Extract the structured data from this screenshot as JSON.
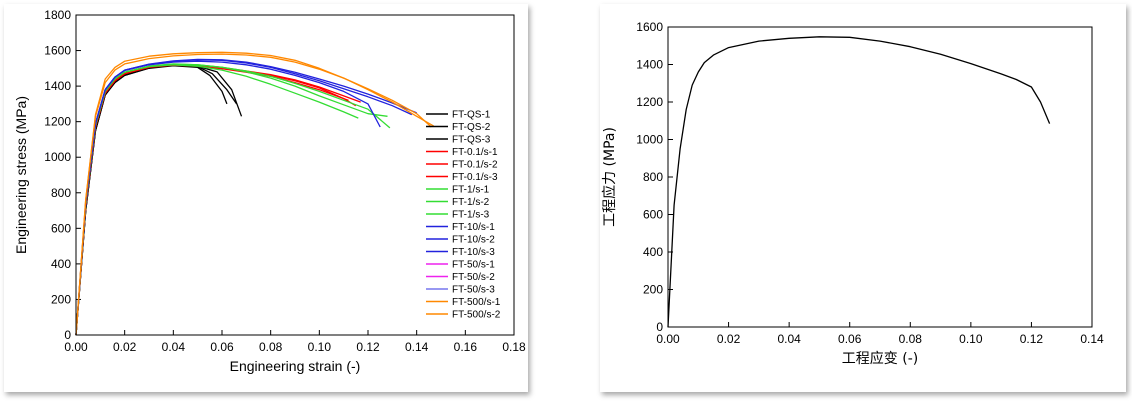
{
  "chart_data": [
    {
      "type": "line",
      "title": "",
      "xlabel": "Engineering strain (-)",
      "ylabel": "Engineering stress (MPa)",
      "xlim": [
        0,
        0.18
      ],
      "ylim": [
        0,
        1800
      ],
      "xticks": [
        "0.00",
        "0.02",
        "0.04",
        "0.06",
        "0.08",
        "0.10",
        "0.12",
        "0.14",
        "0.16",
        "0.18"
      ],
      "yticks": [
        "0",
        "200",
        "400",
        "600",
        "800",
        "1000",
        "1200",
        "1400",
        "1600",
        "1800"
      ],
      "grid": false,
      "legend_position": "right",
      "series": [
        {
          "name": "FT-QS-1",
          "color": "#000000",
          "x": [
            0,
            0.004,
            0.008,
            0.012,
            0.016,
            0.02,
            0.03,
            0.04,
            0.05,
            0.055,
            0.06,
            0.062
          ],
          "y": [
            0,
            700,
            1150,
            1350,
            1420,
            1460,
            1500,
            1515,
            1505,
            1460,
            1370,
            1300
          ]
        },
        {
          "name": "FT-QS-2",
          "color": "#000000",
          "x": [
            0,
            0.004,
            0.008,
            0.012,
            0.016,
            0.02,
            0.03,
            0.04,
            0.05,
            0.056,
            0.062,
            0.066
          ],
          "y": [
            0,
            700,
            1150,
            1350,
            1420,
            1460,
            1502,
            1518,
            1510,
            1470,
            1380,
            1300
          ]
        },
        {
          "name": "FT-QS-3",
          "color": "#000000",
          "x": [
            0,
            0.004,
            0.008,
            0.012,
            0.016,
            0.02,
            0.03,
            0.04,
            0.05,
            0.058,
            0.064,
            0.068
          ],
          "y": [
            0,
            700,
            1150,
            1350,
            1425,
            1465,
            1505,
            1520,
            1512,
            1480,
            1380,
            1230
          ]
        },
        {
          "name": "FT-0.1/s-1",
          "color": "#ff0000",
          "x": [
            0,
            0.004,
            0.008,
            0.012,
            0.016,
            0.02,
            0.03,
            0.04,
            0.05,
            0.06,
            0.07,
            0.08,
            0.09,
            0.1,
            0.11,
            0.115
          ],
          "y": [
            0,
            720,
            1170,
            1360,
            1430,
            1470,
            1508,
            1520,
            1515,
            1500,
            1480,
            1460,
            1430,
            1390,
            1330,
            1290
          ]
        },
        {
          "name": "FT-0.1/s-2",
          "color": "#ff0000",
          "x": [
            0,
            0.004,
            0.008,
            0.012,
            0.016,
            0.02,
            0.03,
            0.04,
            0.05,
            0.06,
            0.07,
            0.08,
            0.09,
            0.1,
            0.11,
            0.117
          ],
          "y": [
            0,
            720,
            1170,
            1360,
            1430,
            1470,
            1508,
            1522,
            1518,
            1505,
            1485,
            1465,
            1435,
            1395,
            1345,
            1310
          ]
        },
        {
          "name": "FT-0.1/s-3",
          "color": "#ff0000",
          "x": [
            0,
            0.004,
            0.008,
            0.012,
            0.016,
            0.02,
            0.03,
            0.04,
            0.05,
            0.06,
            0.07,
            0.08,
            0.09,
            0.1,
            0.108,
            0.112
          ],
          "y": [
            0,
            720,
            1170,
            1360,
            1430,
            1470,
            1505,
            1518,
            1512,
            1498,
            1478,
            1455,
            1420,
            1380,
            1340,
            1320
          ]
        },
        {
          "name": "FT-1/s-1",
          "color": "#33dd33",
          "x": [
            0,
            0.004,
            0.008,
            0.012,
            0.016,
            0.02,
            0.03,
            0.04,
            0.05,
            0.06,
            0.07,
            0.08,
            0.09,
            0.1,
            0.11,
            0.116
          ],
          "y": [
            0,
            730,
            1180,
            1370,
            1440,
            1478,
            1510,
            1520,
            1512,
            1490,
            1455,
            1410,
            1360,
            1310,
            1255,
            1220
          ]
        },
        {
          "name": "FT-1/s-2",
          "color": "#33dd33",
          "x": [
            0,
            0.004,
            0.008,
            0.012,
            0.016,
            0.02,
            0.03,
            0.04,
            0.05,
            0.06,
            0.07,
            0.08,
            0.09,
            0.1,
            0.11,
            0.12,
            0.128
          ],
          "y": [
            0,
            730,
            1180,
            1370,
            1440,
            1478,
            1512,
            1525,
            1520,
            1505,
            1480,
            1445,
            1400,
            1345,
            1295,
            1245,
            1230
          ]
        },
        {
          "name": "FT-1/s-3",
          "color": "#33dd33",
          "x": [
            0,
            0.004,
            0.008,
            0.012,
            0.016,
            0.02,
            0.03,
            0.04,
            0.05,
            0.06,
            0.07,
            0.08,
            0.09,
            0.1,
            0.11,
            0.12,
            0.129
          ],
          "y": [
            0,
            730,
            1180,
            1370,
            1440,
            1478,
            1512,
            1524,
            1520,
            1506,
            1485,
            1455,
            1415,
            1370,
            1320,
            1270,
            1165
          ]
        },
        {
          "name": "FT-10/s-1",
          "color": "#2222dd",
          "x": [
            0,
            0.004,
            0.008,
            0.012,
            0.016,
            0.02,
            0.03,
            0.04,
            0.05,
            0.06,
            0.07,
            0.08,
            0.09,
            0.1,
            0.11,
            0.12,
            0.125
          ],
          "y": [
            0,
            740,
            1190,
            1380,
            1450,
            1488,
            1520,
            1535,
            1540,
            1535,
            1520,
            1495,
            1460,
            1420,
            1370,
            1300,
            1170
          ]
        },
        {
          "name": "FT-10/s-2",
          "color": "#2222dd",
          "x": [
            0,
            0.004,
            0.008,
            0.012,
            0.016,
            0.02,
            0.03,
            0.04,
            0.05,
            0.06,
            0.07,
            0.08,
            0.09,
            0.1,
            0.11,
            0.12,
            0.13,
            0.138
          ],
          "y": [
            0,
            740,
            1190,
            1380,
            1450,
            1490,
            1522,
            1540,
            1548,
            1545,
            1530,
            1505,
            1470,
            1430,
            1385,
            1340,
            1290,
            1240
          ]
        },
        {
          "name": "FT-10/s-3",
          "color": "#2222dd",
          "x": [
            0,
            0.004,
            0.008,
            0.012,
            0.016,
            0.02,
            0.03,
            0.04,
            0.05,
            0.06,
            0.07,
            0.08,
            0.09,
            0.1,
            0.11,
            0.12,
            0.13,
            0.14
          ],
          "y": [
            0,
            740,
            1190,
            1380,
            1450,
            1490,
            1524,
            1542,
            1550,
            1548,
            1535,
            1510,
            1478,
            1440,
            1400,
            1355,
            1305,
            1250
          ]
        },
        {
          "name": "FT-50/s-1",
          "color": "#ee22ee",
          "x": [],
          "y": []
        },
        {
          "name": "FT-50/s-2",
          "color": "#ee22ee",
          "x": [],
          "y": []
        },
        {
          "name": "FT-50/s-3",
          "color": "#7777ee",
          "x": [],
          "y": []
        },
        {
          "name": "FT-500/s-1",
          "color": "#ff8800",
          "x": [
            0,
            0.004,
            0.008,
            0.012,
            0.016,
            0.02,
            0.03,
            0.04,
            0.05,
            0.06,
            0.07,
            0.08,
            0.09,
            0.1,
            0.11,
            0.12,
            0.13,
            0.14,
            0.146
          ],
          "y": [
            0,
            760,
            1230,
            1420,
            1490,
            1525,
            1555,
            1570,
            1578,
            1580,
            1575,
            1562,
            1535,
            1495,
            1445,
            1385,
            1320,
            1245,
            1170
          ]
        },
        {
          "name": "FT-500/s-2",
          "color": "#ff8800",
          "x": [
            0,
            0.004,
            0.008,
            0.012,
            0.016,
            0.02,
            0.03,
            0.04,
            0.05,
            0.06,
            0.07,
            0.08,
            0.09,
            0.1,
            0.11,
            0.12,
            0.13,
            0.14,
            0.147
          ],
          "y": [
            0,
            760,
            1240,
            1440,
            1505,
            1540,
            1568,
            1582,
            1588,
            1590,
            1585,
            1572,
            1545,
            1500,
            1445,
            1380,
            1310,
            1230,
            1175
          ]
        }
      ]
    },
    {
      "type": "line",
      "title": "",
      "xlabel": "工程应变 (-)",
      "ylabel": "工程应力 (MPa)",
      "xlim": [
        0,
        0.14
      ],
      "ylim": [
        0,
        1600
      ],
      "xticks": [
        "0.00",
        "0.02",
        "0.04",
        "0.06",
        "0.08",
        "0.10",
        "0.12",
        "0.14"
      ],
      "yticks": [
        "0",
        "200",
        "400",
        "600",
        "800",
        "1000",
        "1200",
        "1400",
        "1600"
      ],
      "grid": false,
      "series": [
        {
          "color": "#000000",
          "x": [
            0,
            0.002,
            0.004,
            0.006,
            0.008,
            0.01,
            0.012,
            0.015,
            0.02,
            0.03,
            0.04,
            0.05,
            0.06,
            0.07,
            0.08,
            0.09,
            0.1,
            0.11,
            0.115,
            0.12,
            0.123,
            0.126
          ],
          "y": [
            0,
            650,
            950,
            1160,
            1290,
            1360,
            1410,
            1450,
            1490,
            1525,
            1540,
            1548,
            1545,
            1525,
            1495,
            1455,
            1405,
            1350,
            1320,
            1280,
            1200,
            1085
          ]
        }
      ]
    }
  ]
}
